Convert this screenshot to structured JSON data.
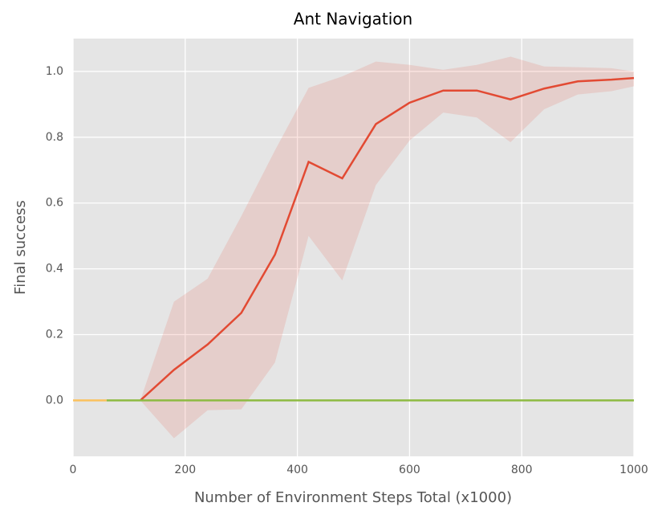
{
  "chart_data": {
    "type": "line",
    "title": "Ant Navigation",
    "xlabel": "Number of Environment Steps Total (x1000)",
    "ylabel": "Final success",
    "xlim": [
      0,
      1000
    ],
    "ylim": [
      -0.17,
      1.1
    ],
    "xticks": [
      0,
      200,
      400,
      600,
      800,
      1000
    ],
    "yticks": [
      {
        "value": 0,
        "label": "0.0"
      },
      0.2,
      0.4,
      0.6,
      0.8,
      {
        "value": 1,
        "label": "1.0"
      }
    ],
    "grid": true,
    "series": [
      {
        "color": "#e24a33",
        "band_color": "#e24a33",
        "x": [
          120,
          180,
          240,
          300,
          360,
          420,
          480,
          540,
          600,
          660,
          720,
          780,
          840,
          900,
          960,
          1000
        ],
        "values": [
          0,
          0.093,
          0.17,
          0.266,
          0.443,
          0.725,
          0.675,
          0.84,
          0.905,
          0.942,
          0.942,
          0.915,
          0.948,
          0.97,
          0.975,
          0.98
        ],
        "upper": [
          0,
          0.3,
          0.37,
          0.56,
          0.76,
          0.95,
          0.985,
          1.03,
          1.02,
          1.005,
          1.02,
          1.045,
          1.015,
          1.013,
          1.01,
          1.0
        ],
        "lower": [
          0,
          -0.115,
          -0.03,
          -0.027,
          0.115,
          0.5,
          0.365,
          0.655,
          0.79,
          0.875,
          0.86,
          0.785,
          0.885,
          0.93,
          0.94,
          0.955
        ]
      },
      {
        "color": "#fbc15e",
        "x": [
          0,
          60
        ],
        "values": [
          0,
          0
        ]
      },
      {
        "color": "#8eba42",
        "x": [
          60,
          1000
        ],
        "values": [
          0,
          0
        ]
      }
    ]
  }
}
